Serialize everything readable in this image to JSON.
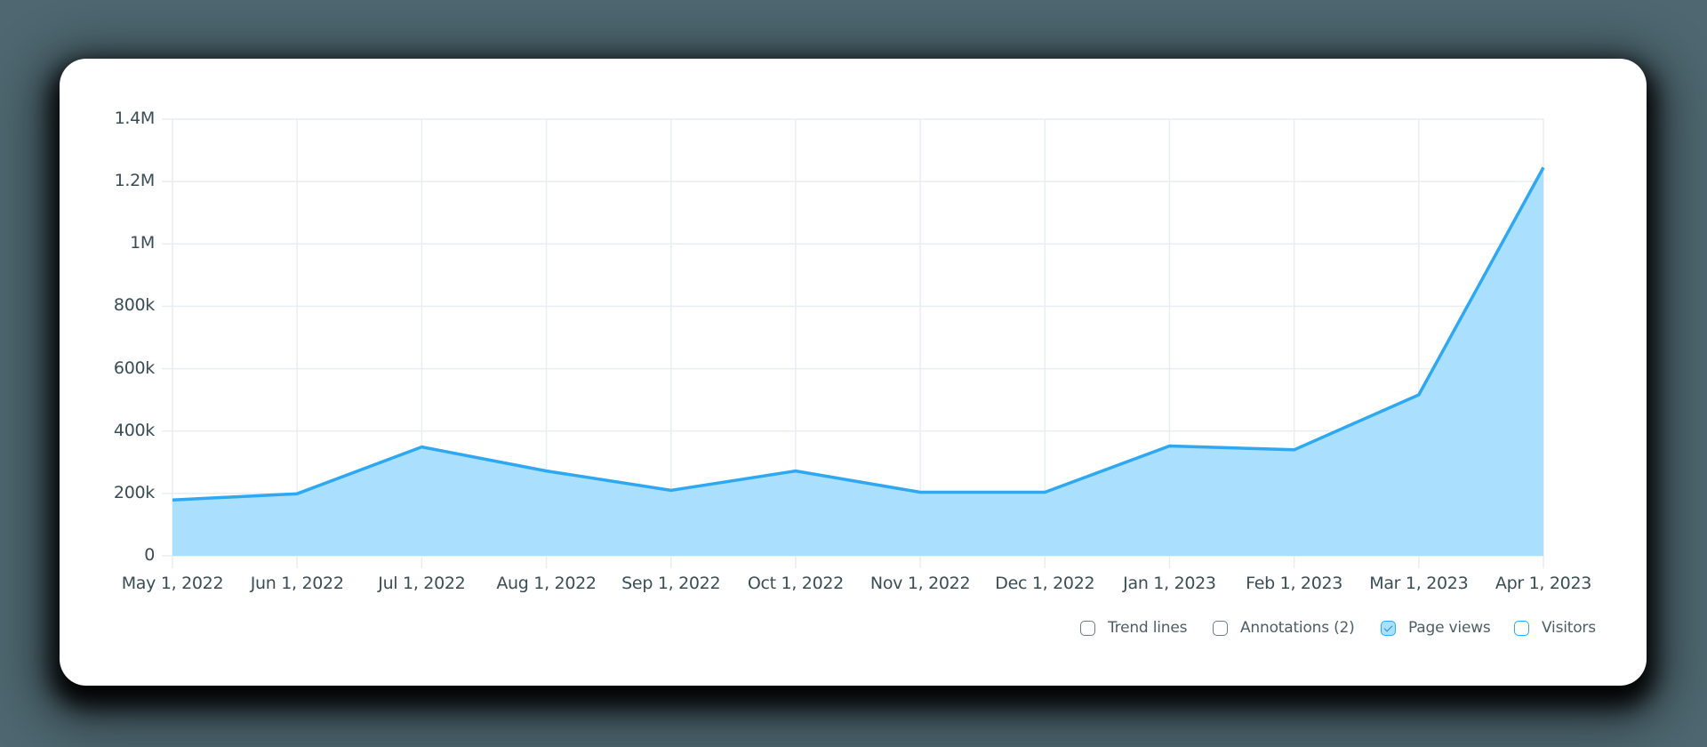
{
  "chart_data": {
    "type": "area",
    "title": "",
    "xlabel": "",
    "ylabel": "",
    "categories": [
      "May 1, 2022",
      "Jun 1, 2022",
      "Jul 1, 2022",
      "Aug 1, 2022",
      "Sep 1, 2022",
      "Oct 1, 2022",
      "Nov 1, 2022",
      "Dec 1, 2022",
      "Jan 1, 2023",
      "Feb 1, 2023",
      "Mar 1, 2023",
      "Apr 1, 2023"
    ],
    "series": [
      {
        "name": "Page views",
        "color": "#2ea8f2",
        "fill": "#aadffd",
        "values": [
          179000,
          199000,
          349000,
          272000,
          210000,
          272000,
          204000,
          204000,
          352000,
          340000,
          516000,
          1245000
        ]
      }
    ],
    "ylim": [
      0,
      1400000
    ],
    "yticks": [
      0,
      200000,
      400000,
      600000,
      800000,
      1000000,
      1200000,
      1400000
    ],
    "ytick_labels": [
      "0",
      "200k",
      "400k",
      "600k",
      "800k",
      "1M",
      "1.2M",
      "1.4M"
    ],
    "grid": true,
    "legend_position": "bottom-right"
  },
  "legend": {
    "items": [
      {
        "label": "Trend lines",
        "checked": false,
        "style": "gray"
      },
      {
        "label": "Annotations (2)",
        "checked": false,
        "style": "gray"
      },
      {
        "label": "Page views",
        "checked": true,
        "style": "blue"
      },
      {
        "label": "Visitors",
        "checked": false,
        "style": "blue"
      }
    ]
  },
  "colors": {
    "line": "#2ea8f2",
    "fill": "#aadffd",
    "grid": "#e8eef2",
    "text": "#3a4d55",
    "background": "#4e6770",
    "card": "#ffffff"
  }
}
